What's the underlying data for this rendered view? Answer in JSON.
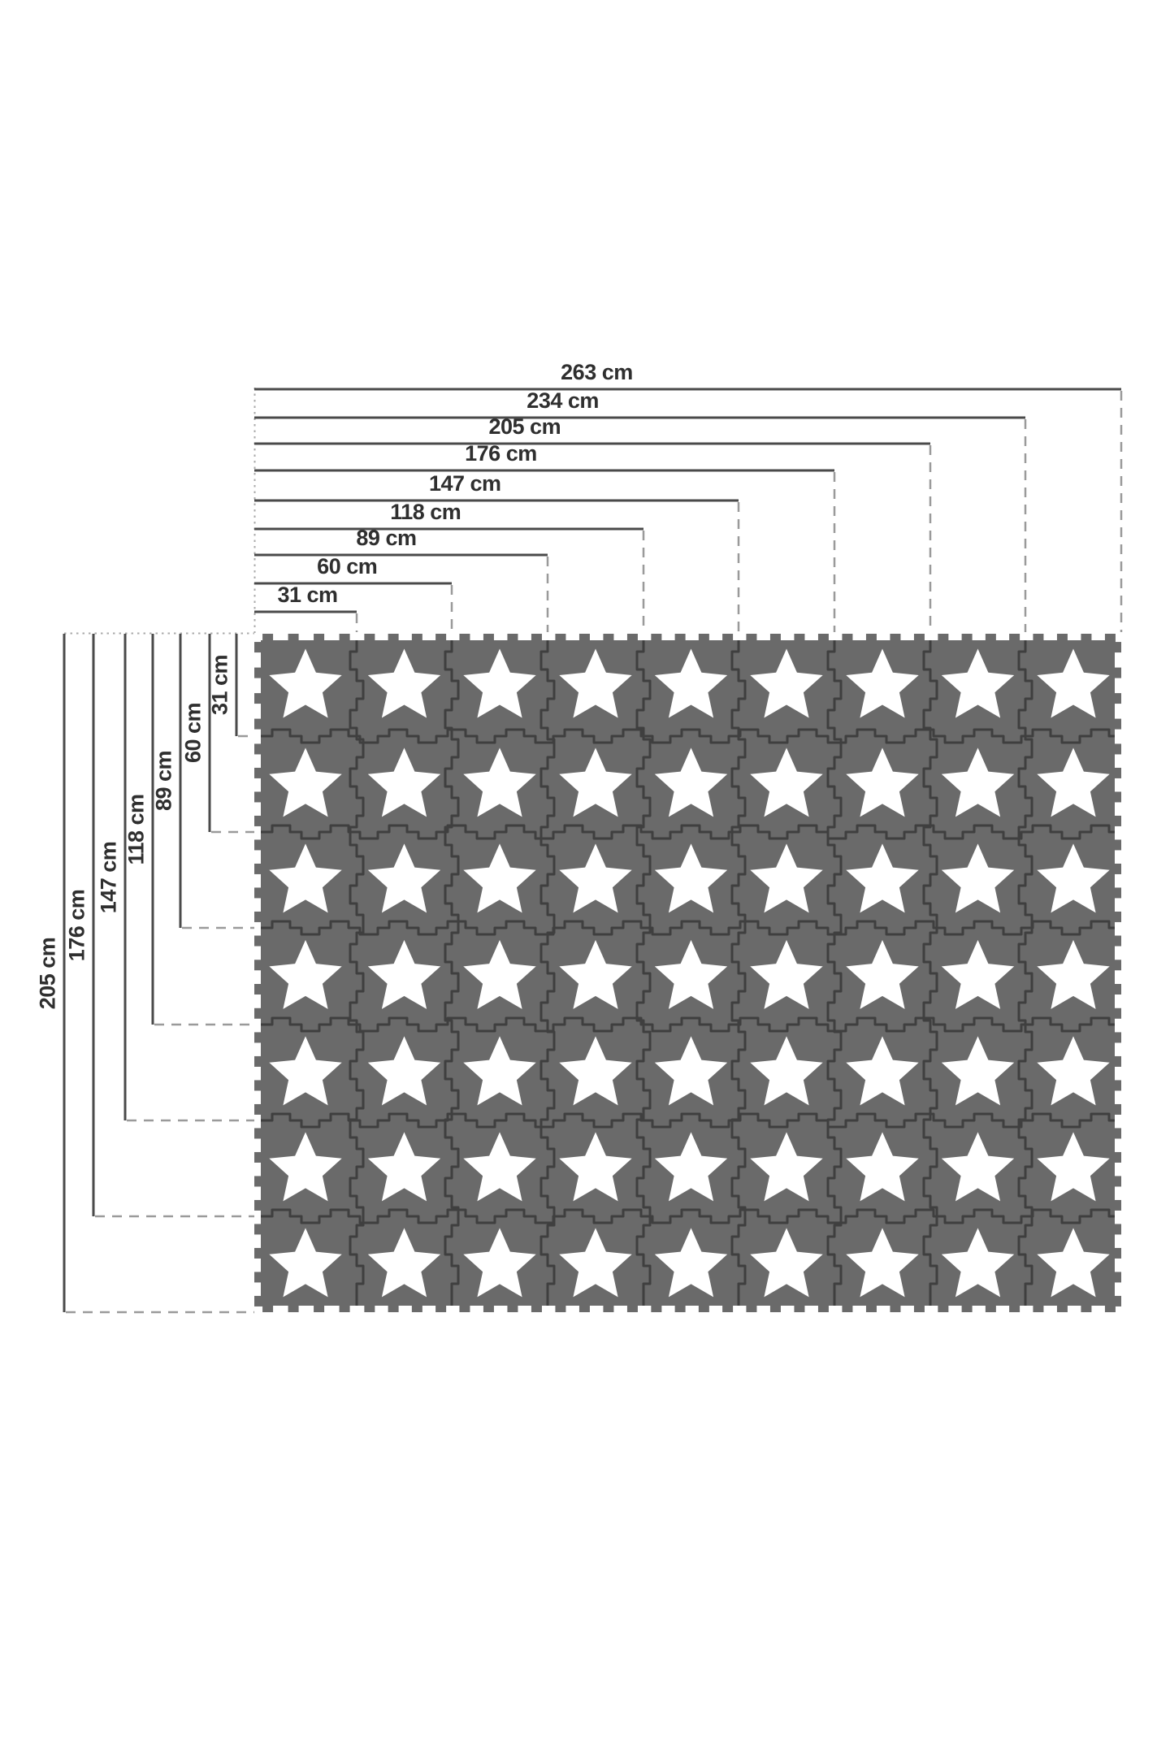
{
  "diagram": {
    "type": "product-dimension-diagram",
    "unit": "cm",
    "mat": {
      "description": "interlocking foam puzzle play mat",
      "columns": 9,
      "rows": 7,
      "tile_motif": "star",
      "star_count": 63
    },
    "dimensions": {
      "top": [
        {
          "label": "263 cm",
          "value_cm": 263
        },
        {
          "label": "234 cm",
          "value_cm": 234
        },
        {
          "label": "205 cm",
          "value_cm": 205
        },
        {
          "label": "176 cm",
          "value_cm": 176
        },
        {
          "label": "147 cm",
          "value_cm": 147
        },
        {
          "label": "118 cm",
          "value_cm": 118
        },
        {
          "label": "89 cm",
          "value_cm": 89
        },
        {
          "label": "60 cm",
          "value_cm": 60
        },
        {
          "label": "31 cm",
          "value_cm": 31
        }
      ],
      "left": [
        {
          "label": "205 cm",
          "value_cm": 205
        },
        {
          "label": "176 cm",
          "value_cm": 176
        },
        {
          "label": "147 cm",
          "value_cm": 147
        },
        {
          "label": "118 cm",
          "value_cm": 118
        },
        {
          "label": "89 cm",
          "value_cm": 89
        },
        {
          "label": "60 cm",
          "value_cm": 60
        },
        {
          "label": "31 cm",
          "value_cm": 31
        }
      ]
    },
    "colors": {
      "background": "#ffffff",
      "tile": "#6a6a6a",
      "seam": "#3f3f3f",
      "star": "#ffffff",
      "dimension_line": "#4a4a4a",
      "guide_dash": "#9a9a9a",
      "guide_dot": "#aaaaaa",
      "label_text": "#2f2f2f"
    }
  }
}
